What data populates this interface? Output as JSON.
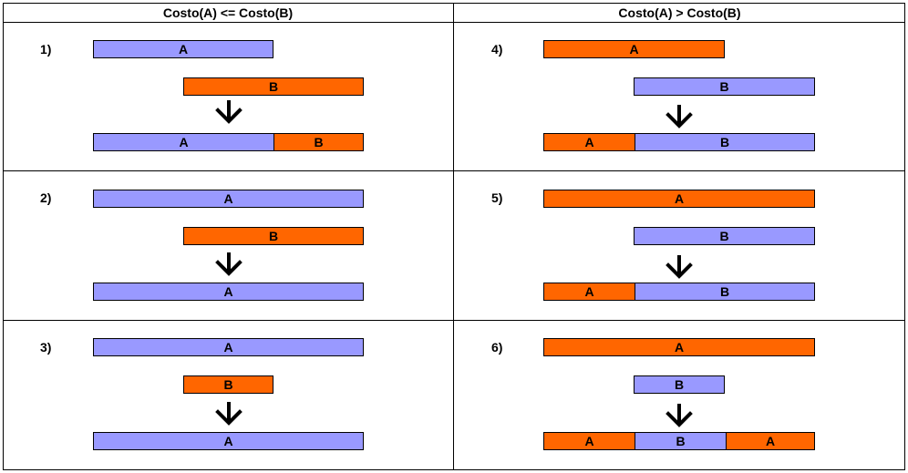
{
  "headers": {
    "left": "Costo(A) <= Costo(B)",
    "right": "Costo(A) > Costo(B)"
  },
  "colors": {
    "a_low": "#9999ff",
    "b_high": "#ff6600"
  },
  "cases": [
    {
      "num": "1)",
      "top": "A",
      "middle": "B",
      "result": [
        "A",
        "B"
      ]
    },
    {
      "num": "2)",
      "top": "A",
      "middle": "B",
      "result": [
        "A"
      ]
    },
    {
      "num": "3)",
      "top": "A",
      "middle": "B",
      "result": [
        "A"
      ]
    },
    {
      "num": "4)",
      "top": "A",
      "middle": "B",
      "result": [
        "A",
        "B"
      ]
    },
    {
      "num": "5)",
      "top": "A",
      "middle": "B",
      "result": [
        "A",
        "B"
      ]
    },
    {
      "num": "6)",
      "top": "A",
      "middle": "B",
      "result": [
        "A",
        "B",
        "A"
      ]
    }
  ]
}
